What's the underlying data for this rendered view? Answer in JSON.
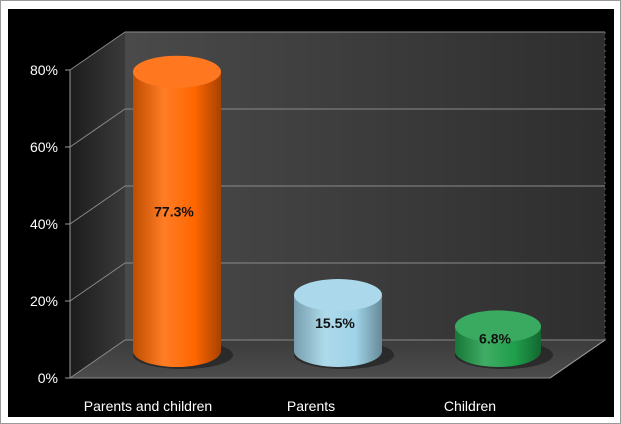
{
  "chart_data": {
    "type": "bar",
    "style": "3d-cylinder",
    "title": "",
    "xlabel": "",
    "ylabel": "",
    "categories": [
      "Parents and children",
      "Parents",
      "Children"
    ],
    "values": [
      77.3,
      15.5,
      6.8
    ],
    "data_labels": [
      "77.3%",
      "15.5%",
      "6.8%"
    ],
    "colors": [
      "#ff6600",
      "#9fd3e8",
      "#1e9e4a"
    ],
    "ylim": [
      0,
      80
    ],
    "yticks": [
      0,
      20,
      40,
      60,
      80
    ],
    "ytick_labels": [
      "0%",
      "20%",
      "40%",
      "60%",
      "80%"
    ],
    "grid": true,
    "legend": "none",
    "background": "#000000"
  }
}
